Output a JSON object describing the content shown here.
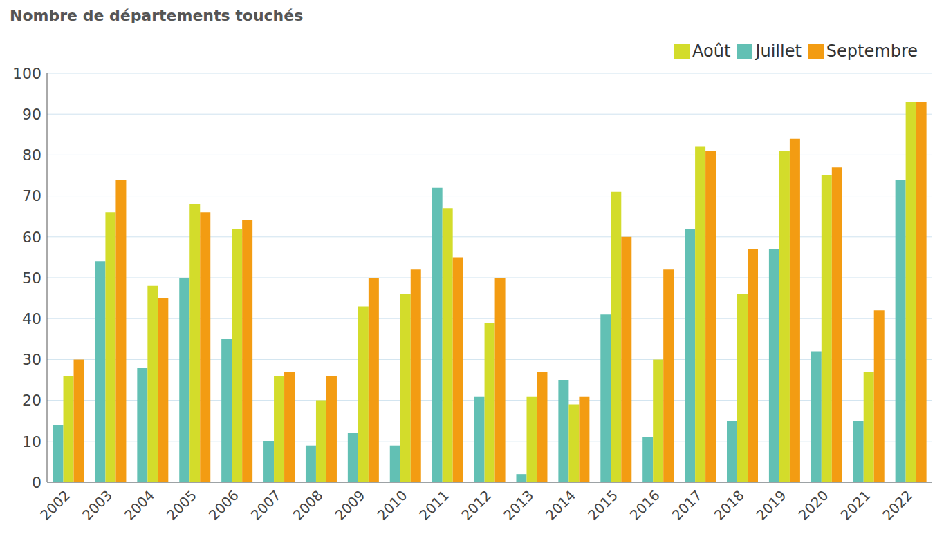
{
  "chart_data": {
    "type": "bar",
    "ylabel": "Nombre de départements touchés",
    "categories": [
      "2002",
      "2003",
      "2004",
      "2005",
      "2006",
      "2007",
      "2008",
      "2009",
      "2010",
      "2011",
      "2012",
      "2013",
      "2014",
      "2015",
      "2016",
      "2017",
      "2018",
      "2019",
      "2020",
      "2021",
      "2022"
    ],
    "series": [
      {
        "name": "Juillet",
        "color": "#62c0b4",
        "values": [
          14,
          54,
          28,
          50,
          35,
          10,
          9,
          12,
          9,
          72,
          21,
          2,
          25,
          41,
          11,
          62,
          15,
          57,
          32,
          15,
          74
        ]
      },
      {
        "name": "Août",
        "color": "#d3dc2b",
        "values": [
          26,
          66,
          48,
          68,
          62,
          26,
          20,
          43,
          46,
          67,
          39,
          21,
          19,
          71,
          30,
          82,
          46,
          81,
          75,
          27,
          93
        ]
      },
      {
        "name": "Septembre",
        "color": "#f39c12",
        "values": [
          30,
          74,
          45,
          66,
          64,
          27,
          26,
          50,
          52,
          55,
          50,
          27,
          21,
          60,
          52,
          81,
          57,
          84,
          77,
          42,
          93
        ]
      }
    ],
    "ylim": [
      0,
      100
    ],
    "yticks": [
      0,
      10,
      20,
      30,
      40,
      50,
      60,
      70,
      80,
      90,
      100
    ],
    "grid": true,
    "legend": "top-right"
  }
}
